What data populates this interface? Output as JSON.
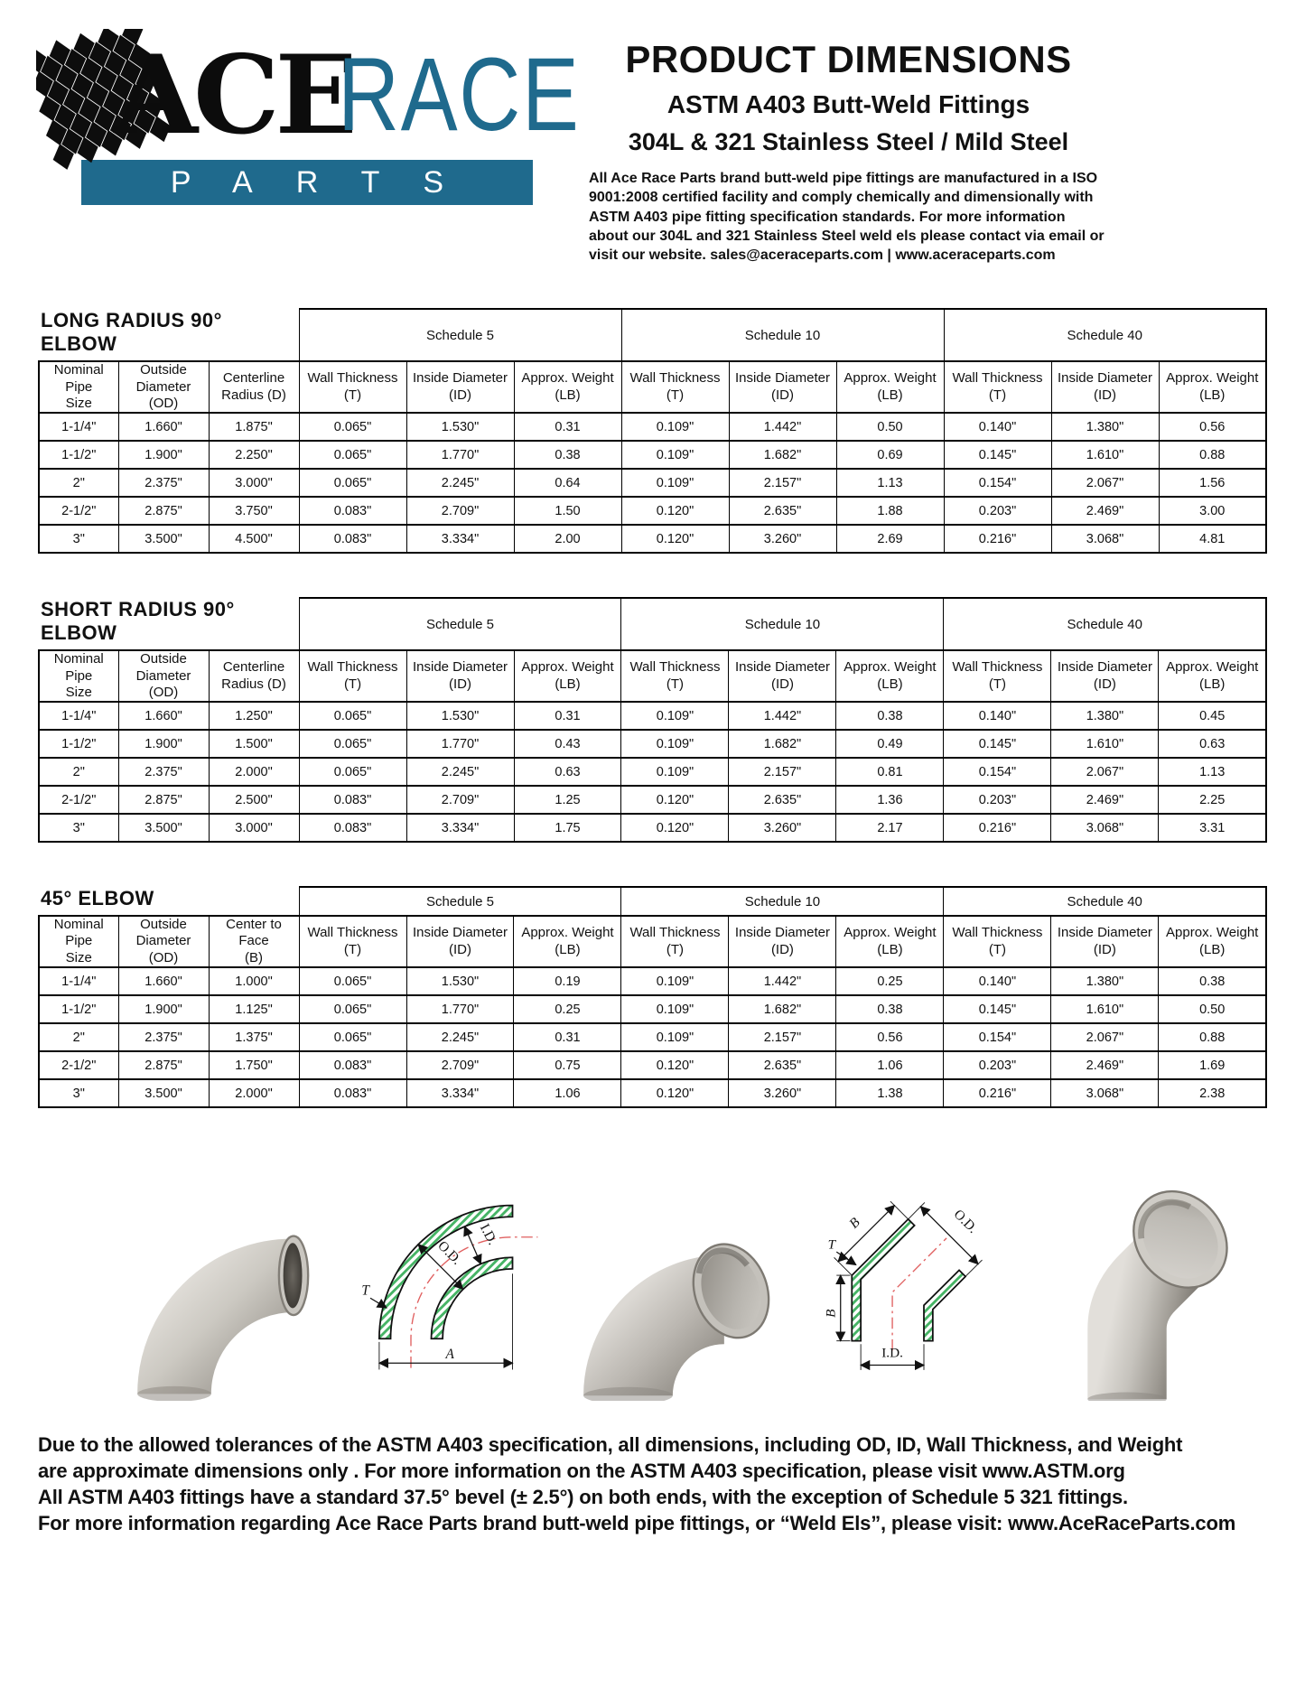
{
  "logo": {
    "ace": "ACE",
    "race": "RACE",
    "parts": "PARTS"
  },
  "header": {
    "title": "PRODUCT DIMENSIONS",
    "subtitle1": "ASTM A403 Butt-Weld Fittings",
    "subtitle2": "304L & 321 Stainless Steel / Mild Steel",
    "description": "All Ace Race Parts brand butt-weld pipe fittings are manufactured in a ISO 9001:2008 certified facility and comply chemically and dimensionally with ASTM A403 pipe fitting specification standards. For more information about our 304L and 321 Stainless Steel weld els please contact via email or visit our website. sales@aceraceparts.com | www.aceraceparts.com"
  },
  "schedule_labels": [
    "Schedule 5",
    "Schedule 10",
    "Schedule 40"
  ],
  "sub_headers": [
    [
      "Wall Thickness",
      "(T)"
    ],
    [
      "Inside Diameter",
      "(ID)"
    ],
    [
      "Approx. Weight",
      "(LB)"
    ]
  ],
  "tables": [
    {
      "title": "LONG RADIUS 90° ELBOW",
      "left_headers": [
        [
          "Nominal Pipe",
          "Size"
        ],
        [
          "Outside",
          "Diameter (OD)"
        ],
        [
          "Centerline",
          "Radius (D)"
        ]
      ],
      "rows": [
        [
          "1-1/4\"",
          "1.660\"",
          "1.875\"",
          "0.065\"",
          "1.530\"",
          "0.31",
          "0.109\"",
          "1.442\"",
          "0.50",
          "0.140\"",
          "1.380\"",
          "0.56"
        ],
        [
          "1-1/2\"",
          "1.900\"",
          "2.250\"",
          "0.065\"",
          "1.770\"",
          "0.38",
          "0.109\"",
          "1.682\"",
          "0.69",
          "0.145\"",
          "1.610\"",
          "0.88"
        ],
        [
          "2\"",
          "2.375\"",
          "3.000\"",
          "0.065\"",
          "2.245\"",
          "0.64",
          "0.109\"",
          "2.157\"",
          "1.13",
          "0.154\"",
          "2.067\"",
          "1.56"
        ],
        [
          "2-1/2\"",
          "2.875\"",
          "3.750\"",
          "0.083\"",
          "2.709\"",
          "1.50",
          "0.120\"",
          "2.635\"",
          "1.88",
          "0.203\"",
          "2.469\"",
          "3.00"
        ],
        [
          "3\"",
          "3.500\"",
          "4.500\"",
          "0.083\"",
          "3.334\"",
          "2.00",
          "0.120\"",
          "3.260\"",
          "2.69",
          "0.216\"",
          "3.068\"",
          "4.81"
        ]
      ]
    },
    {
      "title": "SHORT RADIUS 90° ELBOW",
      "left_headers": [
        [
          "Nominal Pipe",
          "Size"
        ],
        [
          "Outside",
          "Diameter (OD)"
        ],
        [
          "Centerline",
          "Radius (D)"
        ]
      ],
      "rows": [
        [
          "1-1/4\"",
          "1.660\"",
          "1.250\"",
          "0.065\"",
          "1.530\"",
          "0.31",
          "0.109\"",
          "1.442\"",
          "0.38",
          "0.140\"",
          "1.380\"",
          "0.45"
        ],
        [
          "1-1/2\"",
          "1.900\"",
          "1.500\"",
          "0.065\"",
          "1.770\"",
          "0.43",
          "0.109\"",
          "1.682\"",
          "0.49",
          "0.145\"",
          "1.610\"",
          "0.63"
        ],
        [
          "2\"",
          "2.375\"",
          "2.000\"",
          "0.065\"",
          "2.245\"",
          "0.63",
          "0.109\"",
          "2.157\"",
          "0.81",
          "0.154\"",
          "2.067\"",
          "1.13"
        ],
        [
          "2-1/2\"",
          "2.875\"",
          "2.500\"",
          "0.083\"",
          "2.709\"",
          "1.25",
          "0.120\"",
          "2.635\"",
          "1.36",
          "0.203\"",
          "2.469\"",
          "2.25"
        ],
        [
          "3\"",
          "3.500\"",
          "3.000\"",
          "0.083\"",
          "3.334\"",
          "1.75",
          "0.120\"",
          "3.260\"",
          "2.17",
          "0.216\"",
          "3.068\"",
          "3.31"
        ]
      ]
    },
    {
      "title": "45° ELBOW",
      "left_headers": [
        [
          "Nominal Pipe",
          "Size"
        ],
        [
          "Outside",
          "Diameter (OD)"
        ],
        [
          "Center to Face",
          "(B)"
        ]
      ],
      "rows": [
        [
          "1-1/4\"",
          "1.660\"",
          "1.000\"",
          "0.065\"",
          "1.530\"",
          "0.19",
          "0.109\"",
          "1.442\"",
          "0.25",
          "0.140\"",
          "1.380\"",
          "0.38"
        ],
        [
          "1-1/2\"",
          "1.900\"",
          "1.125\"",
          "0.065\"",
          "1.770\"",
          "0.25",
          "0.109\"",
          "1.682\"",
          "0.38",
          "0.145\"",
          "1.610\"",
          "0.50"
        ],
        [
          "2\"",
          "2.375\"",
          "1.375\"",
          "0.065\"",
          "2.245\"",
          "0.31",
          "0.109\"",
          "2.157\"",
          "0.56",
          "0.154\"",
          "2.067\"",
          "0.88"
        ],
        [
          "2-1/2\"",
          "2.875\"",
          "1.750\"",
          "0.083\"",
          "2.709\"",
          "0.75",
          "0.120\"",
          "2.635\"",
          "1.06",
          "0.203\"",
          "2.469\"",
          "1.69"
        ],
        [
          "3\"",
          "3.500\"",
          "2.000\"",
          "0.083\"",
          "3.334\"",
          "1.06",
          "0.120\"",
          "3.260\"",
          "1.38",
          "0.216\"",
          "3.068\"",
          "2.38"
        ]
      ]
    }
  ],
  "figures": {
    "diagram90": {
      "id_label": "I.D.",
      "od_label": "O.D.",
      "t_label": "T",
      "a_label": "A"
    },
    "diagram45": {
      "b_top_label": "B",
      "od_label": "O.D.",
      "t_label": "T",
      "b_left_label": "B",
      "id_label": "I.D."
    }
  },
  "footer": {
    "lines": [
      "Due to the allowed tolerances of the ASTM A403 specification, all dimensions, including OD, ID, Wall Thickness, and Weight",
      "are approximate dimensions only . For more information on the ASTM A403 specification, please visit www.ASTM.org",
      "All ASTM A403 fittings have a standard 37.5° bevel (± 2.5°) on both ends, with the exception of Schedule 5 321 fittings.",
      "For more information regarding Ace Race Parts brand butt-weld pipe fittings, or “Weld Els”, please visit: www.AceRaceParts.com"
    ]
  },
  "colors": {
    "teal": "#1f6a8d",
    "hatch_green": "#46b465",
    "centerline_red": "#e06060"
  }
}
